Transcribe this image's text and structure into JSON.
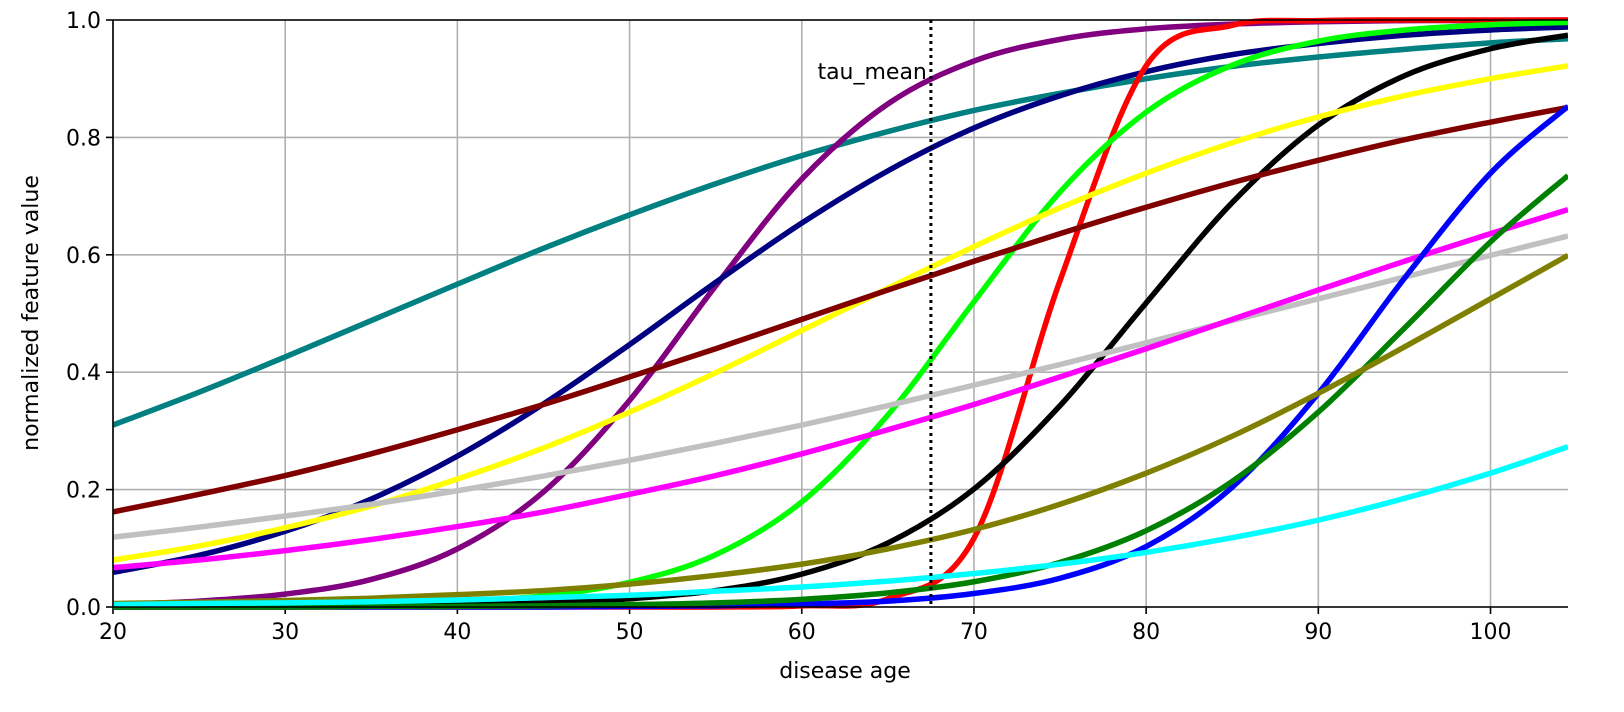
{
  "chart_data": {
    "type": "line",
    "xlabel": "disease age",
    "ylabel": "normalized feature value",
    "x": [
      20,
      25,
      30,
      35,
      40,
      45,
      50,
      55,
      60,
      65,
      70,
      75,
      80,
      85,
      90,
      95,
      100,
      104.5
    ],
    "xlim": [
      20,
      104.5
    ],
    "ylim": [
      0,
      1
    ],
    "xticks": [
      20,
      30,
      40,
      50,
      60,
      70,
      80,
      90,
      100
    ],
    "yticks": [
      {
        "value": 0,
        "label": "0.0"
      },
      0.2,
      0.4,
      0.6,
      0.8,
      {
        "value": 1,
        "label": "1.0"
      }
    ],
    "grid": true,
    "vline": {
      "x": 67.5,
      "label": "tau_mean"
    },
    "series": [
      {
        "color": "#008080",
        "values": [
          0.31,
          0.366,
          0.426,
          0.488,
          0.55,
          0.611,
          0.668,
          0.721,
          0.769,
          0.81,
          0.846,
          0.875,
          0.9,
          0.921,
          0.937,
          0.95,
          0.961,
          0.968
        ]
      },
      {
        "color": "#800080",
        "values": [
          0.004,
          0.01,
          0.022,
          0.047,
          0.099,
          0.196,
          0.352,
          0.547,
          0.729,
          0.857,
          0.93,
          0.967,
          0.985,
          0.993,
          0.997,
          0.999,
          0.999,
          1.0
        ]
      },
      {
        "color": "#000080",
        "values": [
          0.059,
          0.088,
          0.129,
          0.184,
          0.257,
          0.346,
          0.447,
          0.553,
          0.654,
          0.743,
          0.816,
          0.871,
          0.912,
          0.941,
          0.96,
          0.974,
          0.983,
          0.988
        ]
      },
      {
        "color": "#ff0000",
        "values": [
          0,
          0,
          0,
          0,
          0,
          0,
          0,
          0,
          0.002,
          0.014,
          0.117,
          0.556,
          0.922,
          0.991,
          0.999,
          1.0,
          1.0,
          1.0
        ]
      },
      {
        "color": "#00ff00",
        "values": [
          0.0,
          0.001,
          0.002,
          0.004,
          0.009,
          0.019,
          0.042,
          0.089,
          0.179,
          0.327,
          0.52,
          0.707,
          0.843,
          0.923,
          0.964,
          0.983,
          0.992,
          0.996
        ]
      },
      {
        "color": "#000000",
        "values": [
          0.0,
          0.0,
          0.001,
          0.002,
          0.003,
          0.007,
          0.014,
          0.028,
          0.056,
          0.109,
          0.201,
          0.343,
          0.518,
          0.689,
          0.821,
          0.905,
          0.951,
          0.974
        ]
      },
      {
        "color": "#ffff00",
        "values": [
          0.08,
          0.104,
          0.135,
          0.172,
          0.218,
          0.271,
          0.332,
          0.399,
          0.471,
          0.543,
          0.614,
          0.68,
          0.739,
          0.791,
          0.835,
          0.871,
          0.9,
          0.922
        ]
      },
      {
        "color": "#800000",
        "values": [
          0.162,
          0.192,
          0.224,
          0.261,
          0.302,
          0.345,
          0.392,
          0.44,
          0.49,
          0.54,
          0.589,
          0.636,
          0.681,
          0.723,
          0.761,
          0.796,
          0.826,
          0.851
        ]
      },
      {
        "color": "#c0c0c0",
        "values": [
          0.119,
          0.136,
          0.155,
          0.175,
          0.198,
          0.223,
          0.25,
          0.279,
          0.31,
          0.343,
          0.378,
          0.413,
          0.45,
          0.488,
          0.525,
          0.562,
          0.599,
          0.632
        ]
      },
      {
        "color": "#ff00ff",
        "values": [
          0.067,
          0.08,
          0.096,
          0.115,
          0.137,
          0.162,
          0.192,
          0.224,
          0.261,
          0.302,
          0.345,
          0.392,
          0.44,
          0.49,
          0.54,
          0.589,
          0.636,
          0.677
        ]
      },
      {
        "color": "#0000ff",
        "values": [
          0,
          0,
          0,
          0,
          0.0,
          0.0,
          0.001,
          0.002,
          0.005,
          0.01,
          0.023,
          0.049,
          0.103,
          0.204,
          0.364,
          0.56,
          0.739,
          0.853
        ]
      },
      {
        "color": "#008000",
        "values": [
          0.0,
          0.0,
          0.0,
          0.001,
          0.001,
          0.002,
          0.004,
          0.007,
          0.013,
          0.024,
          0.043,
          0.076,
          0.13,
          0.214,
          0.332,
          0.475,
          0.622,
          0.735
        ]
      },
      {
        "color": "#808000",
        "values": [
          0.006,
          0.008,
          0.011,
          0.015,
          0.021,
          0.028,
          0.039,
          0.054,
          0.073,
          0.099,
          0.132,
          0.175,
          0.228,
          0.291,
          0.364,
          0.443,
          0.525,
          0.599
        ]
      },
      {
        "color": "#00ffff",
        "values": [
          0.004,
          0.006,
          0.007,
          0.009,
          0.012,
          0.016,
          0.02,
          0.027,
          0.034,
          0.044,
          0.057,
          0.073,
          0.093,
          0.118,
          0.148,
          0.185,
          0.228,
          0.273
        ]
      }
    ]
  }
}
